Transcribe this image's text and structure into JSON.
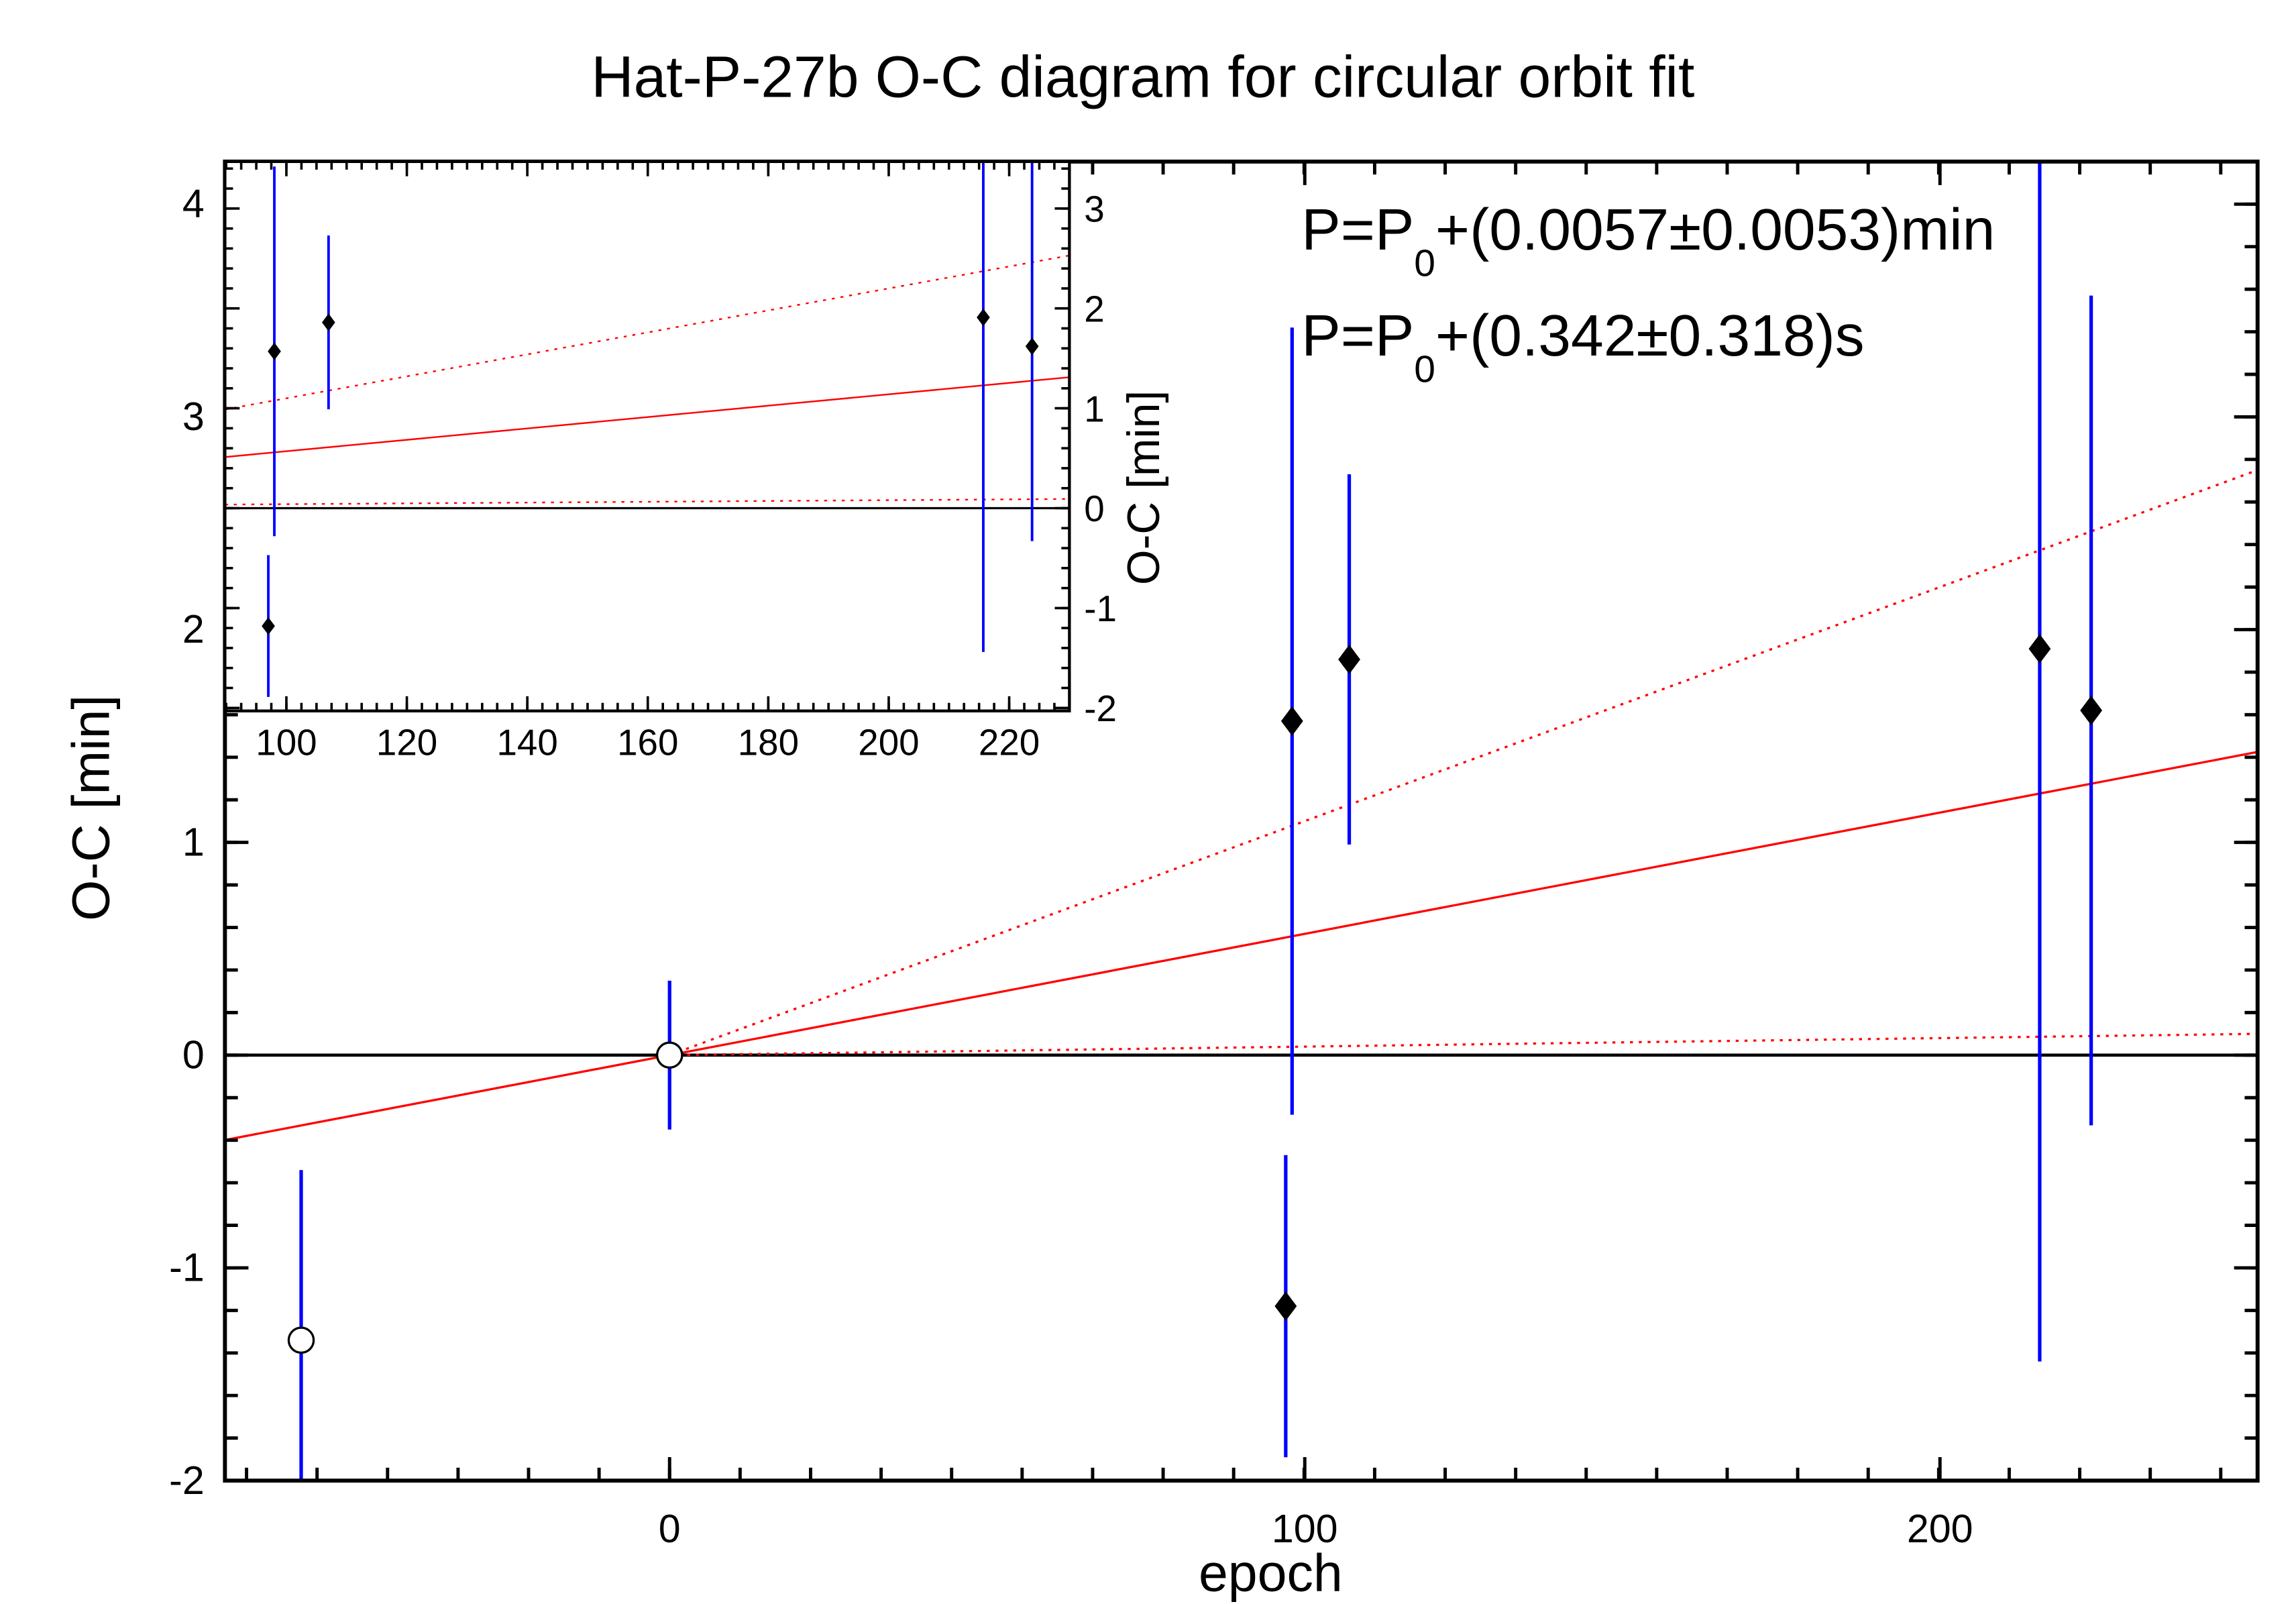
{
  "chart_data": {
    "type": "scatter",
    "title": "Hat-P-27b O-C diagram for circular orbit fit",
    "xlabel": "epoch",
    "ylabel": "O-C [min]",
    "xlim": [
      -70,
      250
    ],
    "ylim": [
      -2,
      4.2
    ],
    "xticks": [
      0,
      100,
      200
    ],
    "yticks": [
      -2,
      -1,
      0,
      1,
      2,
      3,
      4
    ],
    "annotations": [
      {
        "prefix": "P=P",
        "sub": "0",
        "suffix": "+(0.0057±0.0053)min"
      },
      {
        "prefix": "P=P",
        "sub": "0",
        "suffix": "+(0.342±0.318)s"
      }
    ],
    "points": [
      {
        "epoch": -58,
        "oc": -1.34,
        "err": 0.8,
        "marker": "open-circle"
      },
      {
        "epoch": 0,
        "oc": 0.0,
        "err": 0.35,
        "marker": "open-circle"
      },
      {
        "epoch": 97,
        "oc": -1.18,
        "err": 0.71,
        "marker": "diamond"
      },
      {
        "epoch": 98,
        "oc": 1.57,
        "err": 1.85,
        "marker": "diamond"
      },
      {
        "epoch": 107,
        "oc": 1.86,
        "err": 0.87,
        "marker": "diamond"
      },
      {
        "epoch": 215.7,
        "oc": 1.91,
        "err": 3.35,
        "marker": "diamond"
      },
      {
        "epoch": 223.8,
        "oc": 1.62,
        "err": 1.95,
        "marker": "diamond"
      }
    ],
    "fit": {
      "slope": 0.0057,
      "color": "#ff0000",
      "style": "solid"
    },
    "fit_bounds": [
      {
        "slope": 0.011,
        "from": 0,
        "color": "#ff0000",
        "style": "dotted"
      },
      {
        "slope": 0.0004,
        "from": 0,
        "color": "#ff0000",
        "style": "dotted"
      }
    ],
    "zero_line": 0,
    "errorbar_color": "#0000ff",
    "inset": {
      "xlim": [
        89.8,
        230
      ],
      "ylim": [
        -2.03,
        3.47
      ],
      "xticks": [
        100,
        120,
        140,
        160,
        180,
        200,
        220
      ],
      "yticks": [
        -2,
        -1,
        0,
        1,
        2,
        3
      ],
      "ylabel": "O-C [min]",
      "yaxis_side": "right"
    }
  }
}
